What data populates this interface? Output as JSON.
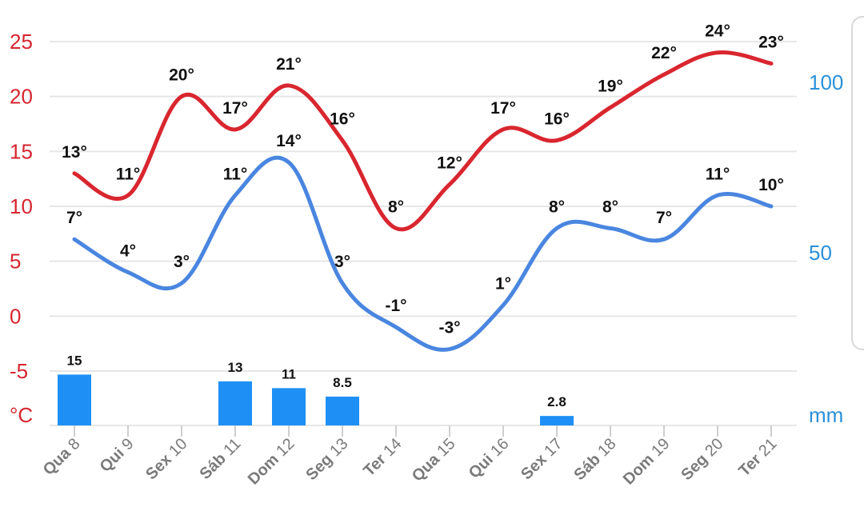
{
  "chart_data": {
    "type": "line",
    "categories": [
      {
        "day": "Qua",
        "num": "8"
      },
      {
        "day": "Qui",
        "num": "9"
      },
      {
        "day": "Sex",
        "num": "10"
      },
      {
        "day": "Sáb",
        "num": "11"
      },
      {
        "day": "Dom",
        "num": "12"
      },
      {
        "day": "Seg",
        "num": "13"
      },
      {
        "day": "Ter",
        "num": "14"
      },
      {
        "day": "Qua",
        "num": "15"
      },
      {
        "day": "Qui",
        "num": "16"
      },
      {
        "day": "Sex",
        "num": "17"
      },
      {
        "day": "Sáb",
        "num": "18"
      },
      {
        "day": "Dom",
        "num": "19"
      },
      {
        "day": "Seg",
        "num": "20"
      },
      {
        "day": "Ter",
        "num": "21"
      }
    ],
    "series": [
      {
        "color": "#d9262f",
        "values": [
          13,
          11,
          20,
          17,
          21,
          16,
          8,
          12,
          17,
          16,
          19,
          22,
          24,
          23
        ],
        "labels": [
          "13°",
          "11°",
          "20°",
          "17°",
          "21°",
          "16°",
          "8°",
          "12°",
          "17°",
          "16°",
          "19°",
          "22°",
          "24°",
          "23°"
        ]
      },
      {
        "color": "#4a86e0",
        "values": [
          7,
          4,
          3,
          11,
          14,
          3,
          -1,
          -3,
          1,
          8,
          8,
          7,
          11,
          10
        ],
        "labels": [
          "7°",
          "4°",
          "3°",
          "11°",
          "14°",
          "3°",
          "-1°",
          "-3°",
          "1°",
          "8°",
          "8°",
          "7°",
          "11°",
          "10°"
        ]
      }
    ],
    "precipitation": {
      "color": "#1e90f5",
      "values": [
        15,
        null,
        null,
        13,
        11,
        8.5,
        null,
        null,
        null,
        2.8,
        null,
        null,
        null,
        null
      ],
      "labels": [
        "15",
        "",
        "",
        "13",
        "11",
        "8.5",
        "",
        "",
        "",
        "2.8",
        "",
        "",
        "",
        ""
      ]
    },
    "y_left": {
      "ticks": [
        "25",
        "20",
        "15",
        "10",
        "5",
        "0",
        "-5"
      ],
      "unit": "°C",
      "ylim": [
        -5,
        25
      ],
      "color": "#d6262f"
    },
    "y_right": {
      "ticks": [
        "100",
        "50"
      ],
      "unit": "mm",
      "color": "#2a90d8"
    },
    "grid": true
  }
}
